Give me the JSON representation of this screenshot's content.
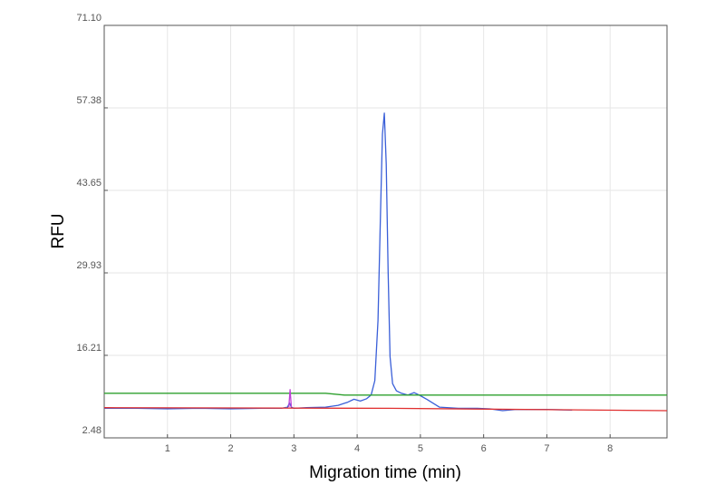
{
  "chart_data": {
    "type": "line",
    "title": "",
    "xlabel": "Migration time (min)",
    "ylabel": "RFU",
    "xlim": [
      0,
      8.9
    ],
    "ylim": [
      2.48,
      71.1
    ],
    "x_ticks": [
      1,
      2,
      3,
      4,
      5,
      6,
      7,
      8
    ],
    "x_tick_labels": [
      "1",
      "2",
      "3",
      "4",
      "5",
      "6",
      "7",
      "8"
    ],
    "y_ticks": [
      2.48,
      16.21,
      29.93,
      43.65,
      57.38,
      71.1
    ],
    "y_tick_labels": [
      "2.48",
      "16.21",
      "29.93",
      "43.65",
      "57.38",
      "71.10"
    ],
    "grid": true,
    "legend": "none",
    "series": [
      {
        "color": "#3a5fd8",
        "x": [
          0,
          0.5,
          1.0,
          1.5,
          2.0,
          2.5,
          2.8,
          2.9,
          2.93,
          2.96,
          3.0,
          3.2,
          3.5,
          3.7,
          3.85,
          3.95,
          4.05,
          4.15,
          4.22,
          4.28,
          4.33,
          4.37,
          4.4,
          4.43,
          4.46,
          4.49,
          4.52,
          4.56,
          4.62,
          4.7,
          4.8,
          4.9,
          5.0,
          5.1,
          5.3,
          5.6,
          5.9,
          6.1,
          6.3,
          6.5,
          7.0,
          7.4
        ],
        "y": [
          7.4,
          7.4,
          7.3,
          7.4,
          7.3,
          7.4,
          7.4,
          7.6,
          8.3,
          7.6,
          7.4,
          7.5,
          7.6,
          7.9,
          8.4,
          8.9,
          8.6,
          9.0,
          9.6,
          12.0,
          22.0,
          40.0,
          53.0,
          56.5,
          48.0,
          30.0,
          16.0,
          11.5,
          10.3,
          9.9,
          9.6,
          10.0,
          9.5,
          8.9,
          7.6,
          7.4,
          7.4,
          7.3,
          7.0,
          7.2,
          7.2,
          7.1
        ]
      },
      {
        "color": "#2ea02e",
        "x": [
          0,
          3.5,
          3.8,
          8.9
        ],
        "y": [
          9.9,
          9.9,
          9.6,
          9.6
        ]
      },
      {
        "color": "#e03030",
        "x": [
          0,
          4.5,
          8.9
        ],
        "y": [
          7.5,
          7.4,
          7.0
        ]
      },
      {
        "color": "#c040d8",
        "x": [
          2.92,
          2.94,
          2.96
        ],
        "y": [
          7.6,
          10.5,
          7.6
        ]
      }
    ]
  }
}
